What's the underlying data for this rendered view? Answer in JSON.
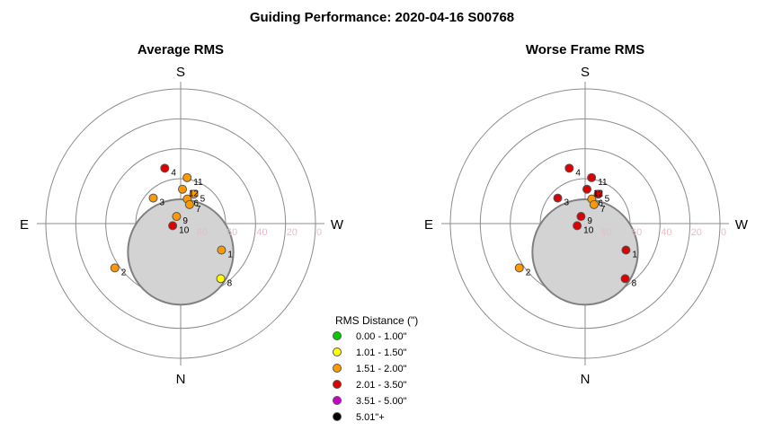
{
  "chart_data": {
    "type": "scatter",
    "title": "Guiding Performance: 2020-04-16 S00768",
    "scale": {
      "outer_altitude": 0,
      "step": 20,
      "ring_altitudes": [
        0,
        20,
        40,
        60,
        80
      ]
    },
    "ring_labels": [
      "80",
      "60",
      "40",
      "20",
      "0"
    ],
    "directions": {
      "top": "S",
      "bottom": "N",
      "left": "E",
      "right": "W"
    },
    "obstruction": {
      "center_alt": 71,
      "center_az": 0,
      "radius": 16
    },
    "legend": {
      "title": "RMS Distance (\")",
      "entries": [
        {
          "label": "0.00 - 1.00\"",
          "color": "#00cc00"
        },
        {
          "label": "1.01 - 1.50\"",
          "color": "#ffff00"
        },
        {
          "label": "1.51 - 2.00\"",
          "color": "#ff9900"
        },
        {
          "label": "2.01 - 3.50\"",
          "color": "#dd0000"
        },
        {
          "label": "3.51 - 5.00\"",
          "color": "#cc00cc"
        },
        {
          "label": "5.01\"+",
          "color": "#000000"
        }
      ]
    },
    "charts": [
      {
        "title": "Average RMS",
        "points": [
          {
            "label": "1",
            "alt": 57.5,
            "az": 303,
            "color": "#ff9900"
          },
          {
            "label": "2",
            "alt": 37,
            "az": 56,
            "color": "#ff9900"
          },
          {
            "label": "3",
            "alt": 65,
            "az": 133,
            "color": "#ff9900"
          },
          {
            "label": "4",
            "alt": 51.5,
            "az": 164,
            "color": "#dd0000"
          },
          {
            "label": "5",
            "alt": 68.5,
            "az": 204,
            "color": "#ff9900"
          },
          {
            "label": "6",
            "alt": 73,
            "az": 195,
            "color": "#ff9900"
          },
          {
            "label": "7",
            "alt": 76,
            "az": 205,
            "color": "#ff9900"
          },
          {
            "label": "8",
            "alt": 44.5,
            "az": 324,
            "color": "#ffff00"
          },
          {
            "label": "9",
            "alt": 84.5,
            "az": 150,
            "color": "#ff9900"
          },
          {
            "label": "10",
            "alt": 84.5,
            "az": 75,
            "color": "#dd0000"
          },
          {
            "label": "11",
            "alt": 59,
            "az": 188,
            "color": "#ff9900"
          },
          {
            "label": "12",
            "alt": 67,
            "az": 183,
            "color": "#ff9900"
          }
        ]
      },
      {
        "title": "Worse Frame RMS",
        "points": [
          {
            "label": "1",
            "alt": 57.5,
            "az": 303,
            "color": "#dd0000"
          },
          {
            "label": "2",
            "alt": 37,
            "az": 56,
            "color": "#ff9900"
          },
          {
            "label": "3",
            "alt": 65,
            "az": 133,
            "color": "#dd0000"
          },
          {
            "label": "4",
            "alt": 51.5,
            "az": 164,
            "color": "#dd0000"
          },
          {
            "label": "5",
            "alt": 68.5,
            "az": 204,
            "color": "#dd0000"
          },
          {
            "label": "6",
            "alt": 73,
            "az": 195,
            "color": "#ff9900"
          },
          {
            "label": "7",
            "alt": 76,
            "az": 205,
            "color": "#ff9900"
          },
          {
            "label": "8",
            "alt": 44.5,
            "az": 324,
            "color": "#dd0000"
          },
          {
            "label": "9",
            "alt": 84.5,
            "az": 150,
            "color": "#dd0000"
          },
          {
            "label": "10",
            "alt": 84.5,
            "az": 75,
            "color": "#dd0000"
          },
          {
            "label": "11",
            "alt": 59,
            "az": 188,
            "color": "#dd0000"
          },
          {
            "label": "12",
            "alt": 67,
            "az": 183,
            "color": "#dd0000"
          }
        ]
      }
    ]
  }
}
